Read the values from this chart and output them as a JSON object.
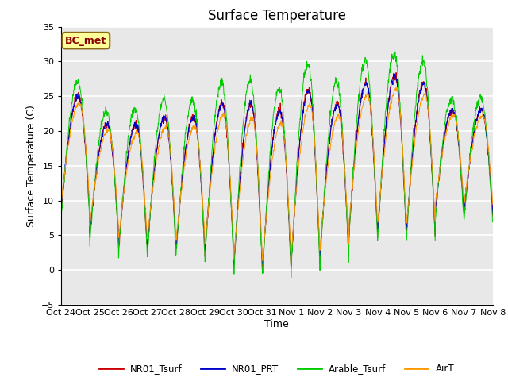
{
  "title": "Surface Temperature",
  "ylabel": "Surface Temperature (C)",
  "xlabel": "Time",
  "ylim": [
    -5,
    35
  ],
  "yticks": [
    -5,
    0,
    5,
    10,
    15,
    20,
    25,
    30,
    35
  ],
  "xtick_labels": [
    "Oct 24",
    "Oct 25",
    "Oct 26",
    "Oct 27",
    "Oct 28",
    "Oct 29",
    "Oct 30",
    "Oct 31",
    "Nov 1",
    "Nov 2",
    "Nov 3",
    "Nov 4",
    "Nov 5",
    "Nov 6",
    "Nov 7",
    "Nov 8"
  ],
  "legend_labels": [
    "NR01_Tsurf",
    "NR01_PRT",
    "Arable_Tsurf",
    "AirT"
  ],
  "colors": [
    "#cc0000",
    "#0000cc",
    "#00cc00",
    "#ff9900"
  ],
  "annotation_text": "BC_met",
  "annotation_bg": "#ffff99",
  "annotation_border": "#8b6914",
  "bg_color": "#e8e8e8",
  "grid_color": "#ffffff",
  "title_fontsize": 12,
  "label_fontsize": 9,
  "tick_fontsize": 8,
  "n_days": 15,
  "pts_per_day": 96
}
